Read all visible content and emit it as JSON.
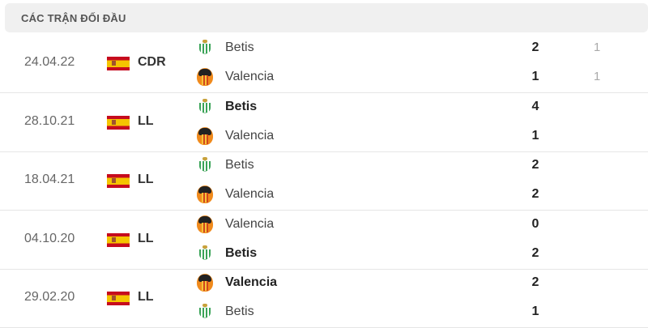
{
  "header": {
    "title": "CÁC TRẬN ĐỐI ĐẦU"
  },
  "matches": [
    {
      "date": "24.04.22",
      "country_flag": "spain-flag",
      "competition": "CDR",
      "home": {
        "name": "Betis",
        "icon": "betis-crest-icon",
        "score": "2",
        "extra": "1",
        "winner": false
      },
      "away": {
        "name": "Valencia",
        "icon": "valencia-crest-icon",
        "score": "1",
        "extra": "1",
        "winner": false
      }
    },
    {
      "date": "28.10.21",
      "country_flag": "spain-flag",
      "competition": "LL",
      "home": {
        "name": "Betis",
        "icon": "betis-crest-icon",
        "score": "4",
        "winner": true
      },
      "away": {
        "name": "Valencia",
        "icon": "valencia-crest-icon",
        "score": "1",
        "winner": false
      }
    },
    {
      "date": "18.04.21",
      "country_flag": "spain-flag",
      "competition": "LL",
      "home": {
        "name": "Betis",
        "icon": "betis-crest-icon",
        "score": "2",
        "winner": false
      },
      "away": {
        "name": "Valencia",
        "icon": "valencia-crest-icon",
        "score": "2",
        "winner": false
      }
    },
    {
      "date": "04.10.20",
      "country_flag": "spain-flag",
      "competition": "LL",
      "home": {
        "name": "Valencia",
        "icon": "valencia-crest-icon",
        "score": "0",
        "winner": false
      },
      "away": {
        "name": "Betis",
        "icon": "betis-crest-icon",
        "score": "2",
        "winner": true
      }
    },
    {
      "date": "29.02.20",
      "country_flag": "spain-flag",
      "competition": "LL",
      "home": {
        "name": "Valencia",
        "icon": "valencia-crest-icon",
        "score": "2",
        "winner": true
      },
      "away": {
        "name": "Betis",
        "icon": "betis-crest-icon",
        "score": "1",
        "winner": false
      }
    }
  ]
}
